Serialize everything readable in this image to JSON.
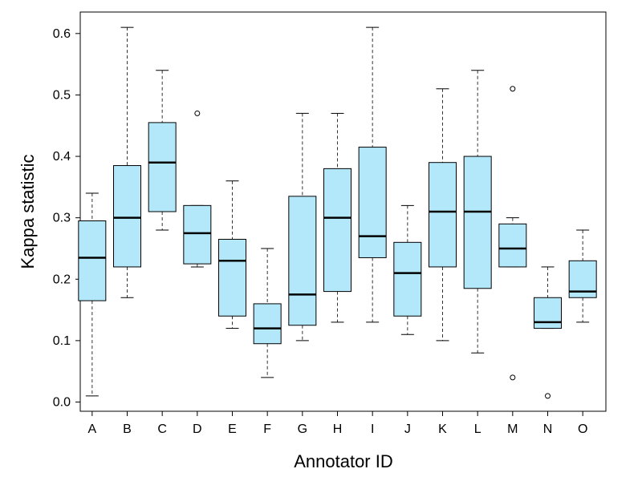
{
  "chart_data": {
    "type": "boxplot",
    "title": "",
    "xlabel": "Annotator ID",
    "ylabel": "Kappa statistic",
    "ylim": [
      -0.015,
      0.635
    ],
    "yticks": [
      0.0,
      0.1,
      0.2,
      0.3,
      0.4,
      0.5,
      0.6
    ],
    "ytick_labels": [
      "0.0",
      "0.1",
      "0.2",
      "0.3",
      "0.4",
      "0.5",
      "0.6"
    ],
    "grid": false,
    "legend": "none",
    "colors": {
      "box_fill": "#b3e8fb",
      "box_stroke": "#000000",
      "median": "#000000",
      "whisker": "#333333"
    },
    "categories": [
      "A",
      "B",
      "C",
      "D",
      "E",
      "F",
      "G",
      "H",
      "I",
      "J",
      "K",
      "L",
      "M",
      "N",
      "O"
    ],
    "boxes": [
      {
        "label": "A",
        "whislo": 0.01,
        "q1": 0.165,
        "med": 0.235,
        "q3": 0.295,
        "whishi": 0.34,
        "fliers": []
      },
      {
        "label": "B",
        "whislo": 0.17,
        "q1": 0.22,
        "med": 0.3,
        "q3": 0.385,
        "whishi": 0.61,
        "fliers": []
      },
      {
        "label": "C",
        "whislo": 0.28,
        "q1": 0.31,
        "med": 0.39,
        "q3": 0.455,
        "whishi": 0.54,
        "fliers": []
      },
      {
        "label": "D",
        "whislo": 0.22,
        "q1": 0.225,
        "med": 0.275,
        "q3": 0.32,
        "whishi": 0.32,
        "fliers": [
          0.47
        ]
      },
      {
        "label": "E",
        "whislo": 0.12,
        "q1": 0.14,
        "med": 0.23,
        "q3": 0.265,
        "whishi": 0.36,
        "fliers": []
      },
      {
        "label": "F",
        "whislo": 0.04,
        "q1": 0.095,
        "med": 0.12,
        "q3": 0.16,
        "whishi": 0.25,
        "fliers": []
      },
      {
        "label": "G",
        "whislo": 0.1,
        "q1": 0.125,
        "med": 0.175,
        "q3": 0.335,
        "whishi": 0.47,
        "fliers": []
      },
      {
        "label": "H",
        "whislo": 0.13,
        "q1": 0.18,
        "med": 0.3,
        "q3": 0.38,
        "whishi": 0.47,
        "fliers": []
      },
      {
        "label": "I",
        "whislo": 0.13,
        "q1": 0.235,
        "med": 0.27,
        "q3": 0.415,
        "whishi": 0.61,
        "fliers": []
      },
      {
        "label": "J",
        "whislo": 0.11,
        "q1": 0.14,
        "med": 0.21,
        "q3": 0.26,
        "whishi": 0.32,
        "fliers": []
      },
      {
        "label": "K",
        "whislo": 0.1,
        "q1": 0.22,
        "med": 0.31,
        "q3": 0.39,
        "whishi": 0.51,
        "fliers": []
      },
      {
        "label": "L",
        "whislo": 0.08,
        "q1": 0.185,
        "med": 0.31,
        "q3": 0.4,
        "whishi": 0.54,
        "fliers": []
      },
      {
        "label": "M",
        "whislo": 0.22,
        "q1": 0.22,
        "med": 0.25,
        "q3": 0.29,
        "whishi": 0.3,
        "fliers": [
          0.04,
          0.51
        ]
      },
      {
        "label": "N",
        "whislo": 0.12,
        "q1": 0.12,
        "med": 0.13,
        "q3": 0.17,
        "whishi": 0.22,
        "fliers": [
          0.01
        ]
      },
      {
        "label": "O",
        "whislo": 0.13,
        "q1": 0.17,
        "med": 0.18,
        "q3": 0.23,
        "whishi": 0.28,
        "fliers": []
      }
    ]
  }
}
